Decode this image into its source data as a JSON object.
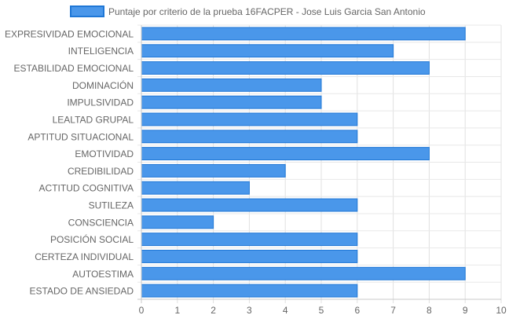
{
  "chart_data": {
    "type": "bar",
    "orientation": "horizontal",
    "categories": [
      "EXPRESIVIDAD EMOCIONAL",
      "INTELIGENCIA",
      "ESTABILIDAD EMOCIONAL",
      "DOMINACIÓN",
      "IMPULSIVIDAD",
      "LEALTAD GRUPAL",
      "APTITUD SITUACIONAL",
      "EMOTIVIDAD",
      "CREDIBILIDAD",
      "ACTITUD COGNITIVA",
      "SUTILEZA",
      "CONSCIENCIA",
      "POSICIÓN SOCIAL",
      "CERTEZA INDIVIDUAL",
      "AUTOESTIMA",
      "ESTADO DE ANSIEDAD"
    ],
    "series": [
      {
        "name": "Puntaje por criterio de la prueba 16FACPER - Jose Luis Garcia San Antonio",
        "values": [
          9,
          7,
          8,
          5,
          5,
          6,
          6,
          8,
          4,
          3,
          6,
          2,
          6,
          6,
          9,
          6
        ],
        "color": "#4a97ea",
        "border_color": "#1f77d6"
      }
    ],
    "xlim": [
      0,
      10
    ],
    "x_ticks": [
      "0",
      "1",
      "2",
      "3",
      "4",
      "5",
      "6",
      "7",
      "8",
      "9",
      "10"
    ],
    "grid": true,
    "legend_position": "top"
  }
}
